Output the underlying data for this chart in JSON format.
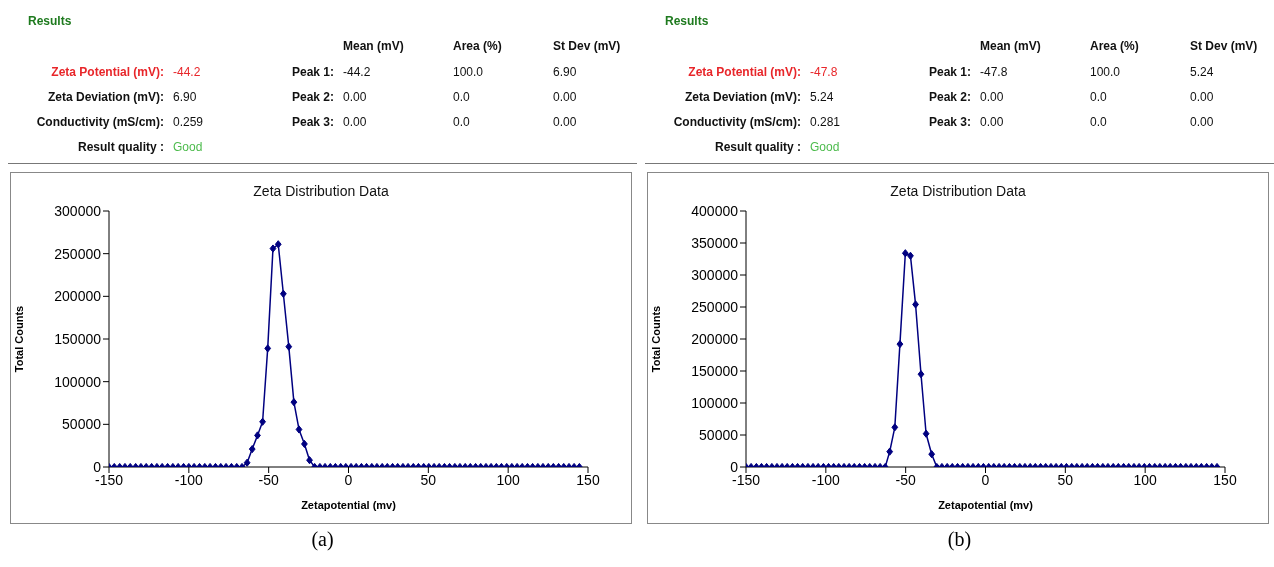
{
  "chart_data": [
    {
      "type": "line",
      "title": "Zeta Distribution Data",
      "xlabel": "Zetapotential (mv)",
      "ylabel": "Total Counts",
      "annotations": [
        "Results",
        "Mean (mV)",
        "Area (%)",
        "St Dev (mV)",
        "Zeta Potential (mV):",
        "-44.2",
        "Peak 1:",
        "-44.2",
        "100.0",
        "6.90",
        "Zeta Deviation (mV):",
        "6.90",
        "Peak 2:",
        "0.00",
        "0.0",
        "0.00",
        "Conductivity (mS/cm):",
        "0.259",
        "Peak 3:",
        "0.00",
        "0.0",
        "0.00",
        "Result quality :",
        "Good",
        "(a)"
      ],
      "x": [
        -150,
        -146.7,
        -143.3,
        -140,
        -136.7,
        -133.3,
        -130,
        -126.7,
        -123.3,
        -120,
        -116.7,
        -113.3,
        -110,
        -106.7,
        -103.3,
        -100,
        -96.7,
        -93.3,
        -90,
        -86.7,
        -83.3,
        -80,
        -76.7,
        -73.3,
        -70,
        -66.7,
        -63.5,
        -60.3,
        -57,
        -53.8,
        -50.6,
        -47.3,
        -44,
        -40.8,
        -37.4,
        -34.2,
        -31,
        -27.6,
        -24.4,
        -21.2,
        -17.9,
        -14.7,
        -11.4,
        -8.2,
        -4.9,
        -1.7,
        1.6,
        4.8,
        8.1,
        11.3,
        14.6,
        17.8,
        21.1,
        24.3,
        27.6,
        30.8,
        34.1,
        37.3,
        40.6,
        43.8,
        47.1,
        50.3,
        53.6,
        56.8,
        60.1,
        63.3,
        66.6,
        69.8,
        73.1,
        76.3,
        79.6,
        82.8,
        86.1,
        89.3,
        92.6,
        95.8,
        99.1,
        102.3,
        105.6,
        108.8,
        112.1,
        115.3,
        118.6,
        121.8,
        125.1,
        128.3,
        131.6,
        134.8,
        138.1,
        141.3,
        144.6
      ],
      "series": [
        {
          "color": "#000080",
          "values": [
            0,
            0,
            0,
            0,
            0,
            0,
            0,
            0,
            0,
            0,
            0,
            0,
            0,
            0,
            0,
            0,
            0,
            0,
            0,
            0,
            0,
            0,
            0,
            0,
            0,
            0,
            5000,
            21000,
            37000,
            53000,
            139000,
            256000,
            261000,
            203000,
            141000,
            76000,
            44000,
            27000,
            8000,
            0,
            0,
            0,
            0,
            0,
            0,
            0,
            0,
            0,
            0,
            0,
            0,
            0,
            0,
            0,
            0,
            0,
            0,
            0,
            0,
            0,
            0,
            0,
            0,
            0,
            0,
            0,
            0,
            0,
            0,
            0,
            0,
            0,
            0,
            0,
            0,
            0,
            0,
            0,
            0,
            0,
            0,
            0,
            0,
            0,
            0,
            0,
            0,
            0,
            0,
            0,
            0
          ]
        }
      ],
      "xlim": [
        -150,
        150
      ],
      "xticks": [
        -150,
        -100,
        -50,
        0,
        50,
        100,
        150
      ],
      "ylim": [
        0,
        300000
      ],
      "yticks": [
        0,
        50000,
        100000,
        150000,
        200000,
        250000,
        300000
      ],
      "grid": false,
      "legend": false,
      "marker": "diamond",
      "line_style": "solid"
    },
    {
      "type": "line",
      "title": "Zeta Distribution Data",
      "xlabel": "Zetapotential (mv)",
      "ylabel": "Total Counts",
      "annotations": [
        "Results",
        "Mean (mV)",
        "Area (%)",
        "St Dev (mV)",
        "Zeta Potential (mV):",
        "-47.8",
        "Peak 1:",
        "-47.8",
        "100.0",
        "5.24",
        "Zeta Deviation (mV):",
        "5.24",
        "Peak 2:",
        "0.00",
        "0.0",
        "0.00",
        "Conductivity (mS/cm):",
        "0.281",
        "Peak 3:",
        "0.00",
        "0.0",
        "0.00",
        "Result quality :",
        "Good",
        "(b)"
      ],
      "x": [
        -150,
        -146.8,
        -143.5,
        -140.3,
        -137.1,
        -133.8,
        -130.6,
        -127.4,
        -124.2,
        -120.9,
        -117.7,
        -114.5,
        -111.2,
        -108,
        -104.8,
        -101.5,
        -98.3,
        -95.1,
        -91.9,
        -88.6,
        -85.4,
        -82.2,
        -78.9,
        -75.7,
        -72.5,
        -69.2,
        -66,
        -62.8,
        -60,
        -56.8,
        -53.6,
        -50.2,
        -47,
        -43.8,
        -40.4,
        -37.2,
        -33.7,
        -30.5,
        -27.3,
        -24,
        -20.8,
        -17.5,
        -14.3,
        -11,
        -7.8,
        -4.5,
        -1.3,
        2,
        5.2,
        8.5,
        11.7,
        15,
        18.2,
        21.5,
        24.7,
        28,
        31.2,
        34.5,
        37.7,
        41,
        44.2,
        47.5,
        50.7,
        54,
        57.2,
        60.5,
        63.7,
        67,
        70.2,
        73.5,
        76.7,
        80,
        83.2,
        86.5,
        89.7,
        93,
        96.2,
        99.5,
        102.7,
        106,
        109.2,
        112.5,
        115.7,
        119,
        122.2,
        125.5,
        128.7,
        132,
        135.2,
        138.5,
        141.7,
        145
      ],
      "series": [
        {
          "color": "#000080",
          "values": [
            0,
            0,
            0,
            0,
            0,
            0,
            0,
            0,
            0,
            0,
            0,
            0,
            0,
            0,
            0,
            0,
            0,
            0,
            0,
            0,
            0,
            0,
            0,
            0,
            0,
            0,
            0,
            0,
            24000,
            62000,
            192000,
            334000,
            330000,
            254000,
            145000,
            52000,
            20000,
            0,
            0,
            0,
            0,
            0,
            0,
            0,
            0,
            0,
            0,
            0,
            0,
            0,
            0,
            0,
            0,
            0,
            0,
            0,
            0,
            0,
            0,
            0,
            0,
            0,
            0,
            0,
            0,
            0,
            0,
            0,
            0,
            0,
            0,
            0,
            0,
            0,
            0,
            0,
            0,
            0,
            0,
            0,
            0,
            0,
            0,
            0,
            0,
            0,
            0,
            0,
            0,
            0,
            0,
            0
          ]
        }
      ],
      "xlim": [
        -150,
        150
      ],
      "xticks": [
        -150,
        -100,
        -50,
        0,
        50,
        100,
        150
      ],
      "ylim": [
        0,
        400000
      ],
      "yticks": [
        0,
        50000,
        100000,
        150000,
        200000,
        250000,
        300000,
        350000,
        400000
      ],
      "grid": false,
      "legend": false,
      "marker": "diamond",
      "line_style": "solid"
    }
  ]
}
